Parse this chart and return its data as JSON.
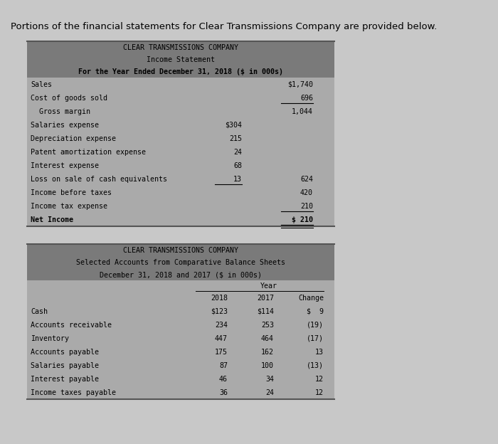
{
  "page_bg": "#c8c8c8",
  "table_header_bg": "#7a7a7a",
  "table_body_bg": "#aaaaaa",
  "intro_text": "Portions of the financial statements for Clear Transmissions Company are provided below.",
  "table1": {
    "header_lines": [
      "CLEAR TRANSMISSIONS COMPANY",
      "Income Statement",
      "For the Year Ended December 31, 2018 ($ in 000s)"
    ],
    "header_bold": [
      false,
      false,
      true
    ],
    "rows": [
      {
        "label": "Sales",
        "col1": "",
        "col2": "$1,740",
        "ul1": false,
        "ul2": false
      },
      {
        "label": "Cost of goods sold",
        "col1": "",
        "col2": "696",
        "ul1": false,
        "ul2": true
      },
      {
        "label": "  Gross margin",
        "col1": "",
        "col2": "1,044",
        "ul1": false,
        "ul2": false
      },
      {
        "label": "Salaries expense",
        "col1": "$304",
        "col2": "",
        "ul1": false,
        "ul2": false
      },
      {
        "label": "Depreciation expense",
        "col1": "215",
        "col2": "",
        "ul1": false,
        "ul2": false
      },
      {
        "label": "Patent amortization expense",
        "col1": "24",
        "col2": "",
        "ul1": false,
        "ul2": false
      },
      {
        "label": "Interest expense",
        "col1": "68",
        "col2": "",
        "ul1": false,
        "ul2": false
      },
      {
        "label": "Loss on sale of cash equivalents",
        "col1": "13",
        "col2": "624",
        "ul1": true,
        "ul2": false
      },
      {
        "label": "Income before taxes",
        "col1": "",
        "col2": "420",
        "ul1": false,
        "ul2": false
      },
      {
        "label": "Income tax expense",
        "col1": "",
        "col2": "210",
        "ul1": false,
        "ul2": true
      },
      {
        "label": "Net Income",
        "col1": "",
        "col2": "$ 210",
        "ul1": false,
        "ul2": true,
        "double_ul": true,
        "bold": true
      }
    ]
  },
  "table2": {
    "header_lines": [
      "CLEAR TRANSMISSIONS COMPANY",
      "Selected Accounts from Comparative Balance Sheets",
      "December 31, 2018 and 2017 ($ in 000s)"
    ],
    "rows": [
      {
        "label": "Cash",
        "v2018": "$123",
        "v2017": "$114",
        "change": "$  9"
      },
      {
        "label": "Accounts receivable",
        "v2018": "234",
        "v2017": "253",
        "change": "(19)"
      },
      {
        "label": "Inventory",
        "v2018": "447",
        "v2017": "464",
        "change": "(17)"
      },
      {
        "label": "Accounts payable",
        "v2018": "175",
        "v2017": "162",
        "change": "13"
      },
      {
        "label": "Salaries payable",
        "v2018": "87",
        "v2017": "100",
        "change": "(13)"
      },
      {
        "label": "Interest payable",
        "v2018": "46",
        "v2017": "34",
        "change": "12"
      },
      {
        "label": "Income taxes payable",
        "v2018": "36",
        "v2017": "24",
        "change": "12"
      }
    ]
  },
  "fs_intro": 9.5,
  "fs_hdr": 7.2,
  "fs_body": 7.2
}
